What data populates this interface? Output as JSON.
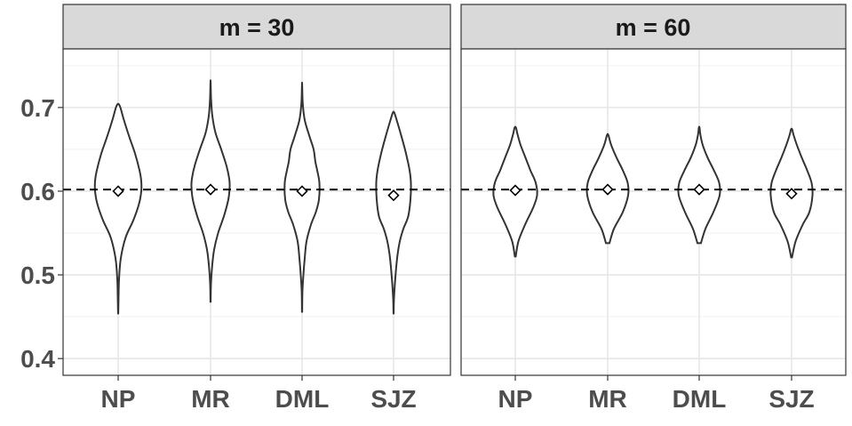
{
  "chart_data": [
    {
      "type": "violin",
      "panel_title": "m = 30",
      "categories": [
        "NP",
        "MR",
        "DML",
        "SJZ"
      ],
      "ylim": [
        0.38,
        0.77
      ],
      "y_ticks": [
        0.4,
        0.5,
        0.6,
        0.7
      ],
      "y_tick_labels": [
        "0.4",
        "0.5",
        "0.6",
        "0.7"
      ],
      "reference_line": 0.602,
      "means": [
        0.6,
        0.602,
        0.6,
        0.595
      ],
      "ranges": [
        [
          0.454,
          0.704
        ],
        [
          0.468,
          0.73
        ],
        [
          0.456,
          0.727
        ],
        [
          0.454,
          0.694
        ]
      ],
      "profiles": [
        [
          [
            0.454,
            0.002
          ],
          [
            0.47,
            0.008
          ],
          [
            0.495,
            0.02
          ],
          [
            0.52,
            0.06
          ],
          [
            0.545,
            0.17
          ],
          [
            0.565,
            0.34
          ],
          [
            0.585,
            0.47
          ],
          [
            0.6,
            0.52
          ],
          [
            0.612,
            0.52
          ],
          [
            0.625,
            0.48
          ],
          [
            0.645,
            0.38
          ],
          [
            0.665,
            0.25
          ],
          [
            0.685,
            0.13
          ],
          [
            0.7,
            0.05
          ],
          [
            0.704,
            0.012
          ]
        ],
        [
          [
            0.468,
            0.002
          ],
          [
            0.49,
            0.01
          ],
          [
            0.51,
            0.035
          ],
          [
            0.53,
            0.08
          ],
          [
            0.55,
            0.17
          ],
          [
            0.57,
            0.3
          ],
          [
            0.59,
            0.4
          ],
          [
            0.605,
            0.43
          ],
          [
            0.615,
            0.42
          ],
          [
            0.63,
            0.36
          ],
          [
            0.65,
            0.24
          ],
          [
            0.67,
            0.11
          ],
          [
            0.69,
            0.04
          ],
          [
            0.71,
            0.012
          ],
          [
            0.73,
            0.002
          ]
        ],
        [
          [
            0.456,
            0.002
          ],
          [
            0.48,
            0.008
          ],
          [
            0.5,
            0.03
          ],
          [
            0.52,
            0.06
          ],
          [
            0.54,
            0.1
          ],
          [
            0.56,
            0.2
          ],
          [
            0.575,
            0.31
          ],
          [
            0.59,
            0.38
          ],
          [
            0.61,
            0.39
          ],
          [
            0.625,
            0.34
          ],
          [
            0.635,
            0.3
          ],
          [
            0.65,
            0.26
          ],
          [
            0.665,
            0.17
          ],
          [
            0.685,
            0.06
          ],
          [
            0.705,
            0.015
          ],
          [
            0.727,
            0.002
          ]
        ],
        [
          [
            0.454,
            0.002
          ],
          [
            0.47,
            0.008
          ],
          [
            0.49,
            0.03
          ],
          [
            0.52,
            0.08
          ],
          [
            0.54,
            0.14
          ],
          [
            0.555,
            0.22
          ],
          [
            0.57,
            0.33
          ],
          [
            0.59,
            0.38
          ],
          [
            0.61,
            0.39
          ],
          [
            0.625,
            0.36
          ],
          [
            0.645,
            0.28
          ],
          [
            0.665,
            0.18
          ],
          [
            0.685,
            0.07
          ],
          [
            0.694,
            0.015
          ]
        ]
      ]
    },
    {
      "type": "violin",
      "panel_title": "m = 60",
      "categories": [
        "NP",
        "MR",
        "DML",
        "SJZ"
      ],
      "ylim": [
        0.38,
        0.77
      ],
      "y_ticks": [
        0.4,
        0.5,
        0.6,
        0.7
      ],
      "reference_line": 0.602,
      "means": [
        0.601,
        0.602,
        0.602,
        0.597
      ],
      "ranges": [
        [
          0.522,
          0.676
        ],
        [
          0.538,
          0.667
        ],
        [
          0.538,
          0.676
        ],
        [
          0.521,
          0.674
        ]
      ],
      "profiles": [
        [
          [
            0.522,
            0.01
          ],
          [
            0.54,
            0.07
          ],
          [
            0.56,
            0.22
          ],
          [
            0.58,
            0.4
          ],
          [
            0.595,
            0.49
          ],
          [
            0.61,
            0.46
          ],
          [
            0.625,
            0.34
          ],
          [
            0.64,
            0.23
          ],
          [
            0.655,
            0.12
          ],
          [
            0.668,
            0.05
          ],
          [
            0.676,
            0.015
          ]
        ],
        [
          [
            0.538,
            0.04
          ],
          [
            0.555,
            0.14
          ],
          [
            0.575,
            0.34
          ],
          [
            0.595,
            0.46
          ],
          [
            0.61,
            0.45
          ],
          [
            0.625,
            0.34
          ],
          [
            0.64,
            0.2
          ],
          [
            0.655,
            0.08
          ],
          [
            0.667,
            0.015
          ]
        ],
        [
          [
            0.538,
            0.04
          ],
          [
            0.555,
            0.14
          ],
          [
            0.575,
            0.32
          ],
          [
            0.595,
            0.46
          ],
          [
            0.61,
            0.45
          ],
          [
            0.625,
            0.33
          ],
          [
            0.64,
            0.19
          ],
          [
            0.655,
            0.08
          ],
          [
            0.668,
            0.025
          ],
          [
            0.676,
            0.008
          ]
        ],
        [
          [
            0.521,
            0.01
          ],
          [
            0.54,
            0.09
          ],
          [
            0.56,
            0.25
          ],
          [
            0.575,
            0.4
          ],
          [
            0.595,
            0.47
          ],
          [
            0.61,
            0.45
          ],
          [
            0.625,
            0.35
          ],
          [
            0.64,
            0.23
          ],
          [
            0.655,
            0.12
          ],
          [
            0.668,
            0.04
          ],
          [
            0.674,
            0.012
          ]
        ]
      ]
    }
  ]
}
